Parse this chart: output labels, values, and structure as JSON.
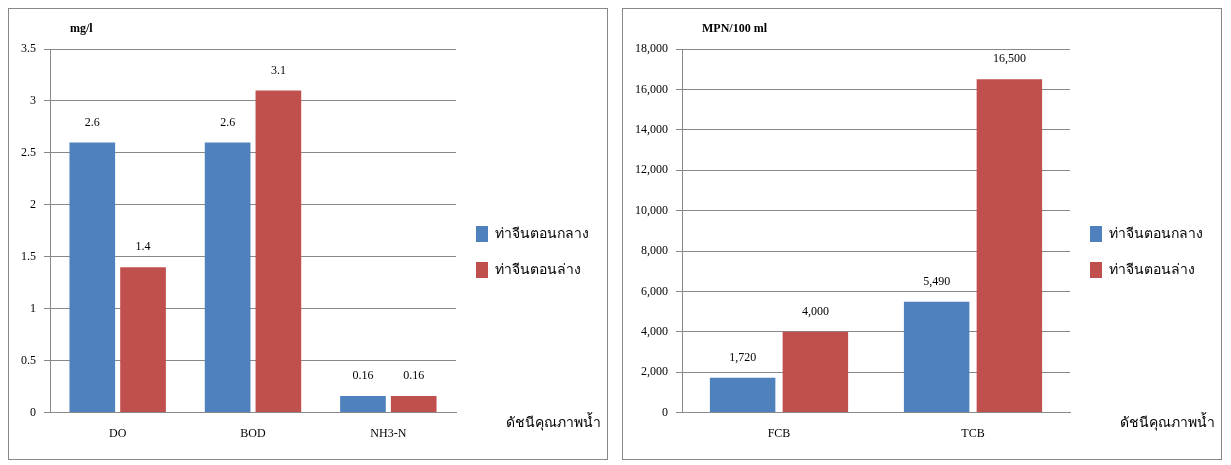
{
  "chart_data": [
    {
      "type": "bar",
      "ylabel": "mg/l",
      "xlabel": "ดัชนีคุณภาพน้ำ",
      "categories": [
        "DO",
        "BOD",
        "NH3-N"
      ],
      "series": [
        {
          "name": "ท่าจีนตอนกลาง",
          "color": "#4f81bd",
          "values": [
            2.6,
            2.6,
            0.16
          ]
        },
        {
          "name": "ท่าจีนตอนล่าง",
          "color": "#c0504d",
          "values": [
            1.4,
            3.1,
            0.16
          ]
        }
      ],
      "ylim": [
        0,
        3.5
      ],
      "yticks": [
        0,
        0.5,
        1,
        1.5,
        2,
        2.5,
        3,
        3.5
      ],
      "grid": "y",
      "legend": "right",
      "data_labels": true
    },
    {
      "type": "bar",
      "ylabel": "MPN/100 ml",
      "xlabel": "ดัชนีคุณภาพน้ำ",
      "categories": [
        "FCB",
        "TCB"
      ],
      "series": [
        {
          "name": "ท่าจีนตอนกลาง",
          "color": "#4f81bd",
          "values": [
            1720,
            5490
          ],
          "value_labels": [
            "1,720",
            "5,490"
          ]
        },
        {
          "name": "ท่าจีนตอนล่าง",
          "color": "#c0504d",
          "values": [
            4000,
            16500
          ],
          "value_labels": [
            "4,000",
            "16,500"
          ]
        }
      ],
      "ylim": [
        0,
        18000
      ],
      "yticks": [
        0,
        {
          "value": 2000,
          "label": "2,000"
        },
        {
          "value": 4000,
          "label": "4,000"
        },
        {
          "value": 6000,
          "label": "6,000"
        },
        {
          "value": 8000,
          "label": "8,000"
        },
        {
          "value": 10000,
          "label": "10,000"
        },
        {
          "value": 12000,
          "label": "12,000"
        },
        {
          "value": 14000,
          "label": "14,000"
        },
        {
          "value": 16000,
          "label": "16,000"
        },
        {
          "value": 18000,
          "label": "18,000"
        }
      ],
      "grid": "y",
      "legend": "right"
    }
  ]
}
